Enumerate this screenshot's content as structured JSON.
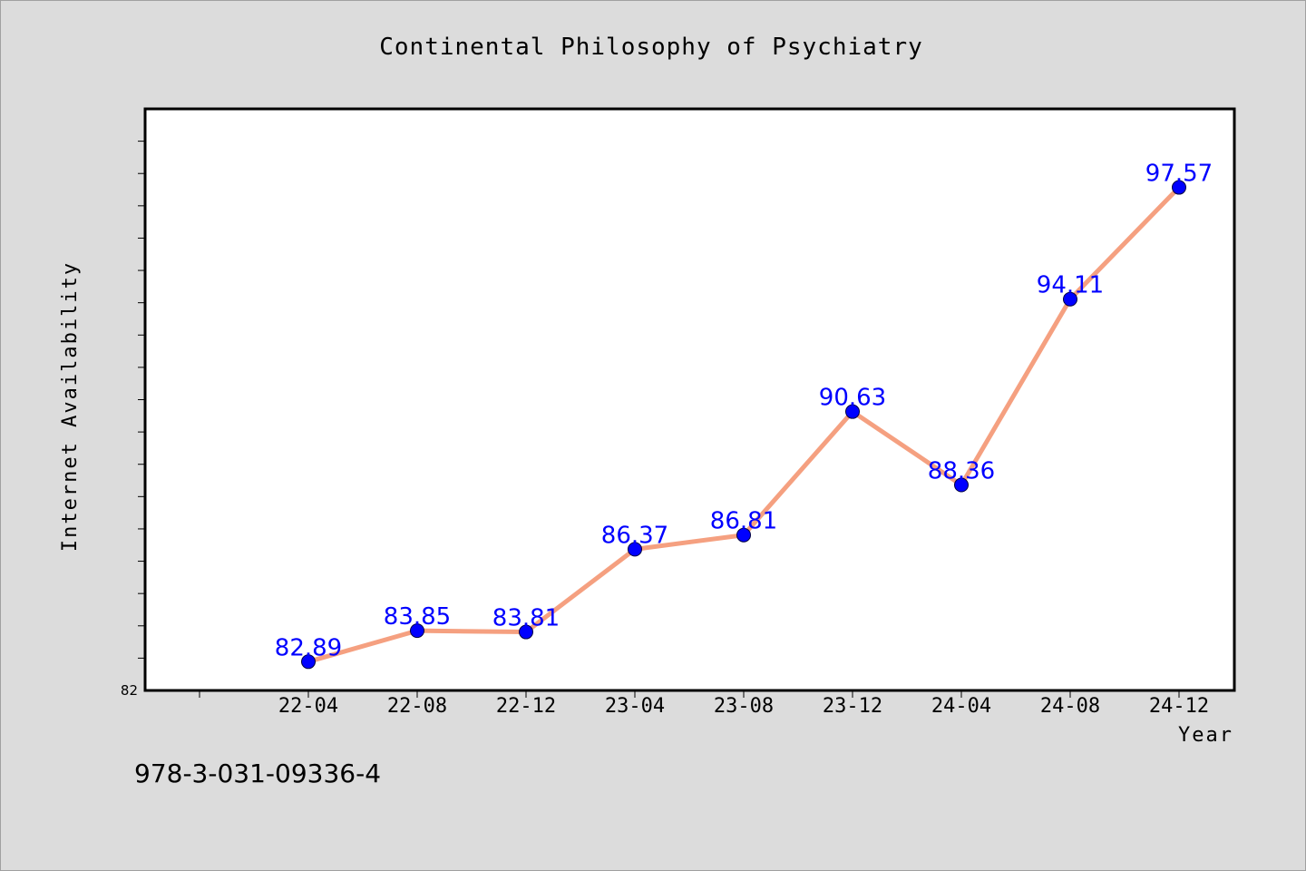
{
  "chart_data": {
    "type": "line",
    "title": "Continental Philosophy of Psychiatry",
    "xlabel": "Year",
    "ylabel": "Internet Availability",
    "categories": [
      "22-04",
      "22-08",
      "22-12",
      "23-04",
      "23-08",
      "23-12",
      "24-04",
      "24-08",
      "24-12"
    ],
    "series": [
      {
        "values": [
          82.89,
          83.85,
          83.81,
          86.37,
          86.81,
          90.63,
          88.36,
          94.11,
          97.57
        ],
        "data_labels": [
          "82.89",
          "83.85",
          "83.81",
          "86.37",
          "86.81",
          "90.63",
          "88.36",
          "94.11",
          "97.57"
        ],
        "line_color": "#f5a080",
        "marker_color": "#0000ff"
      }
    ],
    "ylim": [
      82,
      100
    ],
    "yticks": [
      82
    ],
    "y_tick_labels": [
      "82"
    ],
    "grid": false,
    "legend": "none"
  },
  "footer": {
    "isbn": "978-3-031-09336-4"
  },
  "colors": {
    "background": "#dcdcdc",
    "plot_area": "#ffffff",
    "line": "#f5a080",
    "marker": "#0000ff",
    "data_label": "#0000ff"
  }
}
